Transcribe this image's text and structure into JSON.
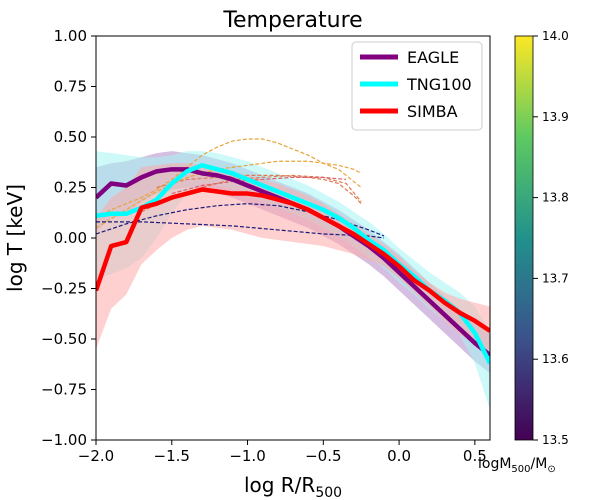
{
  "chart_data": {
    "type": "line",
    "title": "Temperature",
    "xlabel": "log R/R",
    "xlabel_sub": "500",
    "ylabel": "log T [keV]",
    "xlim": [
      -2.0,
      0.6
    ],
    "ylim": [
      -1.0,
      1.0
    ],
    "x_ticks": [
      -2.0,
      -1.5,
      -1.0,
      -0.5,
      0.0,
      0.5
    ],
    "x_tick_labels": [
      "−2.0",
      "−1.5",
      "−1.0",
      "−0.5",
      "0.0",
      "0.5"
    ],
    "y_ticks": [
      -1.0,
      -0.75,
      -0.5,
      -0.25,
      0.0,
      0.25,
      0.5,
      0.75,
      1.0
    ],
    "y_tick_labels": [
      "−1.00",
      "−0.75",
      "−0.50",
      "−0.25",
      "0.00",
      "0.25",
      "0.50",
      "0.75",
      "1.00"
    ],
    "grid": false,
    "legend_position": "top-right",
    "series": [
      {
        "name": "EAGLE",
        "color": "#800080",
        "x": [
          -2.0,
          -1.9,
          -1.8,
          -1.7,
          -1.6,
          -1.5,
          -1.4,
          -1.3,
          -1.2,
          -1.1,
          -1.0,
          -0.9,
          -0.8,
          -0.7,
          -0.6,
          -0.5,
          -0.4,
          -0.3,
          -0.2,
          -0.1,
          0.0,
          0.1,
          0.2,
          0.3,
          0.4,
          0.5,
          0.6
        ],
        "y": [
          0.2,
          0.27,
          0.26,
          0.3,
          0.33,
          0.34,
          0.34,
          0.32,
          0.31,
          0.29,
          0.26,
          0.23,
          0.2,
          0.17,
          0.14,
          0.1,
          0.06,
          0.01,
          -0.04,
          -0.1,
          -0.17,
          -0.24,
          -0.31,
          -0.38,
          -0.45,
          -0.52,
          -0.58
        ],
        "band_upper": [
          0.35,
          0.37,
          0.38,
          0.4,
          0.42,
          0.43,
          0.42,
          0.41,
          0.39,
          0.37,
          0.34,
          0.31,
          0.28,
          0.25,
          0.22,
          0.18,
          0.14,
          0.09,
          0.04,
          -0.02,
          -0.08,
          -0.15,
          -0.22,
          -0.29,
          -0.35,
          -0.41,
          -0.46
        ],
        "band_lower": [
          0.03,
          0.1,
          0.11,
          0.18,
          0.22,
          0.24,
          0.25,
          0.24,
          0.22,
          0.2,
          0.17,
          0.14,
          0.11,
          0.08,
          0.05,
          0.01,
          -0.03,
          -0.08,
          -0.13,
          -0.19,
          -0.26,
          -0.33,
          -0.4,
          -0.47,
          -0.54,
          -0.61,
          -0.67
        ]
      },
      {
        "name": "TNG100",
        "color": "#00ffff",
        "x": [
          -2.0,
          -1.9,
          -1.8,
          -1.7,
          -1.6,
          -1.5,
          -1.4,
          -1.3,
          -1.2,
          -1.1,
          -1.0,
          -0.9,
          -0.8,
          -0.7,
          -0.6,
          -0.5,
          -0.4,
          -0.3,
          -0.2,
          -0.1,
          0.0,
          0.1,
          0.2,
          0.3,
          0.4,
          0.5,
          0.6
        ],
        "y": [
          0.11,
          0.12,
          0.12,
          0.15,
          0.19,
          0.27,
          0.33,
          0.36,
          0.34,
          0.32,
          0.29,
          0.26,
          0.23,
          0.2,
          0.17,
          0.14,
          0.1,
          0.05,
          -0.01,
          -0.06,
          -0.13,
          -0.19,
          -0.26,
          -0.31,
          -0.37,
          -0.47,
          -0.62
        ],
        "band_upper": [
          0.43,
          0.42,
          0.41,
          0.4,
          0.4,
          0.41,
          0.43,
          0.43,
          0.42,
          0.4,
          0.38,
          0.35,
          0.32,
          0.29,
          0.26,
          0.22,
          0.18,
          0.13,
          0.08,
          0.02,
          -0.05,
          -0.11,
          -0.17,
          -0.22,
          -0.27,
          -0.34,
          -0.46
        ],
        "band_lower": [
          -0.2,
          -0.18,
          -0.15,
          -0.1,
          0.0,
          0.12,
          0.22,
          0.27,
          0.26,
          0.24,
          0.21,
          0.18,
          0.15,
          0.12,
          0.09,
          0.05,
          0.01,
          -0.04,
          -0.1,
          -0.15,
          -0.22,
          -0.28,
          -0.35,
          -0.41,
          -0.48,
          -0.62,
          -0.85
        ]
      },
      {
        "name": "SIMBA",
        "color": "#ff0000",
        "x": [
          -2.0,
          -1.95,
          -1.9,
          -1.8,
          -1.7,
          -1.6,
          -1.5,
          -1.4,
          -1.3,
          -1.2,
          -1.1,
          -1.0,
          -0.9,
          -0.8,
          -0.7,
          -0.6,
          -0.5,
          -0.4,
          -0.3,
          -0.2,
          -0.1,
          0.0,
          0.1,
          0.2,
          0.3,
          0.4,
          0.5,
          0.6
        ],
        "y": [
          -0.26,
          -0.15,
          -0.04,
          -0.02,
          0.15,
          0.17,
          0.2,
          0.22,
          0.24,
          0.23,
          0.22,
          0.22,
          0.21,
          0.19,
          0.17,
          0.14,
          0.1,
          0.06,
          0.02,
          -0.03,
          -0.08,
          -0.14,
          -0.21,
          -0.26,
          -0.32,
          -0.37,
          -0.41,
          -0.46
        ],
        "band_upper": [
          0.1,
          0.15,
          0.2,
          0.25,
          0.35,
          0.36,
          0.37,
          0.37,
          0.36,
          0.35,
          0.33,
          0.31,
          0.29,
          0.27,
          0.24,
          0.21,
          0.17,
          0.12,
          0.07,
          0.02,
          -0.03,
          -0.09,
          -0.16,
          -0.22,
          -0.27,
          -0.3,
          -0.32,
          -0.34
        ],
        "band_lower": [
          -0.55,
          -0.45,
          -0.35,
          -0.28,
          -0.13,
          -0.06,
          0.0,
          0.04,
          0.06,
          0.05,
          0.04,
          0.02,
          0.0,
          -0.01,
          -0.02,
          -0.03,
          -0.04,
          -0.06,
          -0.08,
          -0.11,
          -0.14,
          -0.2,
          -0.27,
          -0.34,
          -0.41,
          -0.48,
          -0.52,
          -0.56
        ]
      }
    ],
    "individual_profiles": [
      {
        "color": "#e8a33a",
        "x": [
          -2.0,
          -1.9,
          -1.8,
          -1.7,
          -1.6,
          -1.5,
          -1.4,
          -1.3,
          -1.2,
          -1.1,
          -1.0,
          -0.9,
          -0.8,
          -0.7,
          -0.6,
          -0.5,
          -0.4,
          -0.3,
          -0.25
        ],
        "y": [
          0.1,
          0.14,
          0.17,
          0.2,
          0.24,
          0.29,
          0.35,
          0.41,
          0.45,
          0.48,
          0.49,
          0.49,
          0.47,
          0.44,
          0.41,
          0.37,
          0.34,
          0.28,
          0.25
        ]
      },
      {
        "color": "#e8a33a",
        "x": [
          -2.0,
          -1.8,
          -1.6,
          -1.4,
          -1.2,
          -1.0,
          -0.8,
          -0.6,
          -0.4,
          -0.3,
          -0.25
        ],
        "y": [
          0.05,
          0.14,
          0.23,
          0.3,
          0.34,
          0.36,
          0.38,
          0.38,
          0.36,
          0.34,
          0.32
        ]
      },
      {
        "color": "#e07a52",
        "x": [
          -1.6,
          -1.4,
          -1.2,
          -1.0,
          -0.8,
          -0.6,
          -0.5,
          -0.4,
          -0.3,
          -0.25
        ],
        "y": [
          0.25,
          0.29,
          0.3,
          0.31,
          0.31,
          0.3,
          0.29,
          0.27,
          0.21,
          0.17
        ]
      },
      {
        "color": "#e07a52",
        "x": [
          -1.7,
          -1.5,
          -1.3,
          -1.1,
          -0.9,
          -0.7,
          -0.5,
          -0.35,
          -0.25
        ],
        "y": [
          0.13,
          0.2,
          0.25,
          0.29,
          0.3,
          0.31,
          0.3,
          0.27,
          0.18
        ]
      },
      {
        "color": "#d6606d",
        "x": [
          -1.5,
          -1.3,
          -1.1,
          -0.9,
          -0.7,
          -0.5,
          -0.35
        ],
        "y": [
          0.22,
          0.26,
          0.28,
          0.29,
          0.3,
          0.3,
          0.29
        ]
      },
      {
        "color": "#1b1b7a",
        "x": [
          -2.0,
          -1.8,
          -1.6,
          -1.4,
          -1.2,
          -1.0,
          -0.8,
          -0.6,
          -0.4,
          -0.2,
          -0.1
        ],
        "y": [
          0.02,
          0.07,
          0.11,
          0.14,
          0.16,
          0.17,
          0.16,
          0.13,
          0.09,
          0.04,
          0.01
        ]
      },
      {
        "color": "#1b1b7a",
        "x": [
          -2.0,
          -1.7,
          -1.4,
          -1.1,
          -0.8,
          -0.5,
          -0.2,
          -0.1
        ],
        "y": [
          0.08,
          0.08,
          0.07,
          0.06,
          0.04,
          0.02,
          0.01,
          0.0
        ]
      }
    ],
    "colorbar": {
      "label": "logM",
      "label_sub": "500",
      "label_tail": "/M",
      "label_tail_sub": "⊙",
      "range": [
        13.5,
        14.0
      ],
      "ticks": [
        13.5,
        13.6,
        13.7,
        13.8,
        13.9,
        14.0
      ],
      "tick_labels": [
        "13.5",
        "13.6",
        "13.7",
        "13.8",
        "13.9",
        "14.0"
      ],
      "colormap": [
        "#440154",
        "#3b528b",
        "#21918c",
        "#5ec962",
        "#fde725"
      ]
    }
  }
}
